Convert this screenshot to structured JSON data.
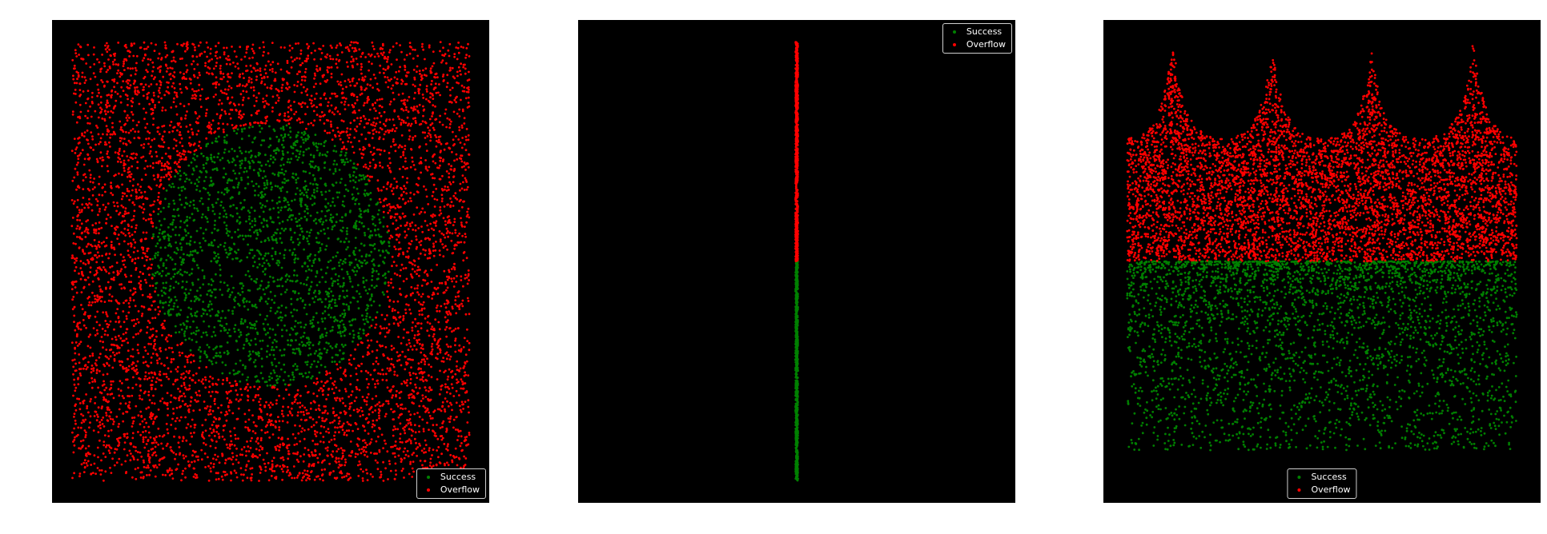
{
  "colors": {
    "background": "#000000",
    "success": "#008000",
    "overflow": "#ff0000",
    "legend_border": "#cfcfcf",
    "legend_text": "#ffffff"
  },
  "chart_data": [
    {
      "type": "scatter",
      "title": "",
      "xlabel": "",
      "ylabel": "",
      "xlim": [
        -1.1,
        1.1
      ],
      "ylim": [
        -1.1,
        1.1
      ],
      "grid": false,
      "axes_visible": false,
      "region": "square uniform samples, success inside a circle of radius 0.6 centered near (0, 0.03), overflow elsewhere",
      "legend": {
        "placement": "lower-right",
        "entries": [
          {
            "label": "Success",
            "color": "#008000"
          },
          {
            "label": "Overflow",
            "color": "#ff0000"
          }
        ]
      },
      "series": [
        {
          "name": "Success",
          "color": "#008000",
          "approx_points": 2200
        },
        {
          "name": "Overflow",
          "color": "#ff0000",
          "approx_points": 5200
        }
      ]
    },
    {
      "type": "scatter",
      "title": "",
      "xlabel": "",
      "ylabel": "",
      "xlim": [
        -1.1,
        1.1
      ],
      "ylim": [
        -1.1,
        1.1
      ],
      "grid": false,
      "axes_visible": false,
      "region": "all points on a vertical line at x = 0, success for y below 0, overflow for y above 0",
      "legend": {
        "placement": "upper-right",
        "entries": [
          {
            "label": "Success",
            "color": "#008000"
          },
          {
            "label": "Overflow",
            "color": "#ff0000"
          }
        ]
      },
      "series": [
        {
          "name": "Success",
          "color": "#008000",
          "x": 0,
          "y_range": [
            -1.0,
            0.0
          ]
        },
        {
          "name": "Overflow",
          "color": "#ff0000",
          "x": 0,
          "y_range": [
            0.0,
            1.0
          ]
        }
      ]
    },
    {
      "type": "scatter",
      "title": "",
      "xlabel": "",
      "ylabel": "",
      "xlim": [
        -1.1,
        1.1
      ],
      "ylim": [
        -1.1,
        1.1
      ],
      "grid": false,
      "axes_visible": false,
      "region": "success uniformly below y = 0 (sparser toward the bottom), overflow above y = 0 with four cusp-shaped peaks",
      "peaks_x": [
        -0.75,
        -0.25,
        0.25,
        0.76
      ],
      "peak_tops_y": [
        1.0,
        0.97,
        0.96,
        1.0
      ],
      "valley_y": 0.55,
      "legend": {
        "placement": "lower-center",
        "entries": [
          {
            "label": "Success",
            "color": "#008000"
          },
          {
            "label": "Overflow",
            "color": "#ff0000"
          }
        ]
      },
      "series": [
        {
          "name": "Success",
          "color": "#008000",
          "approx_points": 3200
        },
        {
          "name": "Overflow",
          "color": "#ff0000",
          "approx_points": 5600
        }
      ]
    }
  ]
}
